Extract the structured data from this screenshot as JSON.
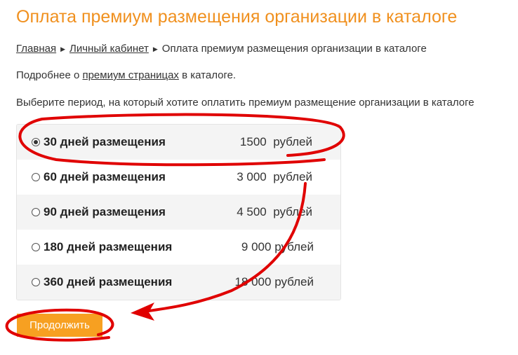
{
  "title": "Оплата премиум размещения организации в каталоге",
  "breadcrumb": {
    "items": [
      "Главная",
      "Личный кабинет"
    ],
    "current": "Оплата премиум размещения организации в каталоге"
  },
  "info": {
    "prefix": "Подробнее о ",
    "link": "премиум страницах",
    "suffix": " в каталоге."
  },
  "instruction": "Выберите период, на который хотите оплатить премиум размещение организации в каталоге",
  "options": [
    {
      "label": "30 дней размещения",
      "price": "1500",
      "currency": "рублей",
      "selected": true
    },
    {
      "label": "60 дней размещения",
      "price": "3 000",
      "currency": "рублей",
      "selected": false
    },
    {
      "label": "90 дней размещения",
      "price": "4 500",
      "currency": "рублей",
      "selected": false
    },
    {
      "label": "180 дней размещения",
      "price": "9 000",
      "currency": "рублей",
      "selected": false
    },
    {
      "label": "360 дней размещения",
      "price": "18 000",
      "currency": "рублей",
      "selected": false
    }
  ],
  "continue_label": "Продолжить",
  "colors": {
    "accent": "#f0901e",
    "button": "#f7a021",
    "annotation": "#e00000"
  }
}
